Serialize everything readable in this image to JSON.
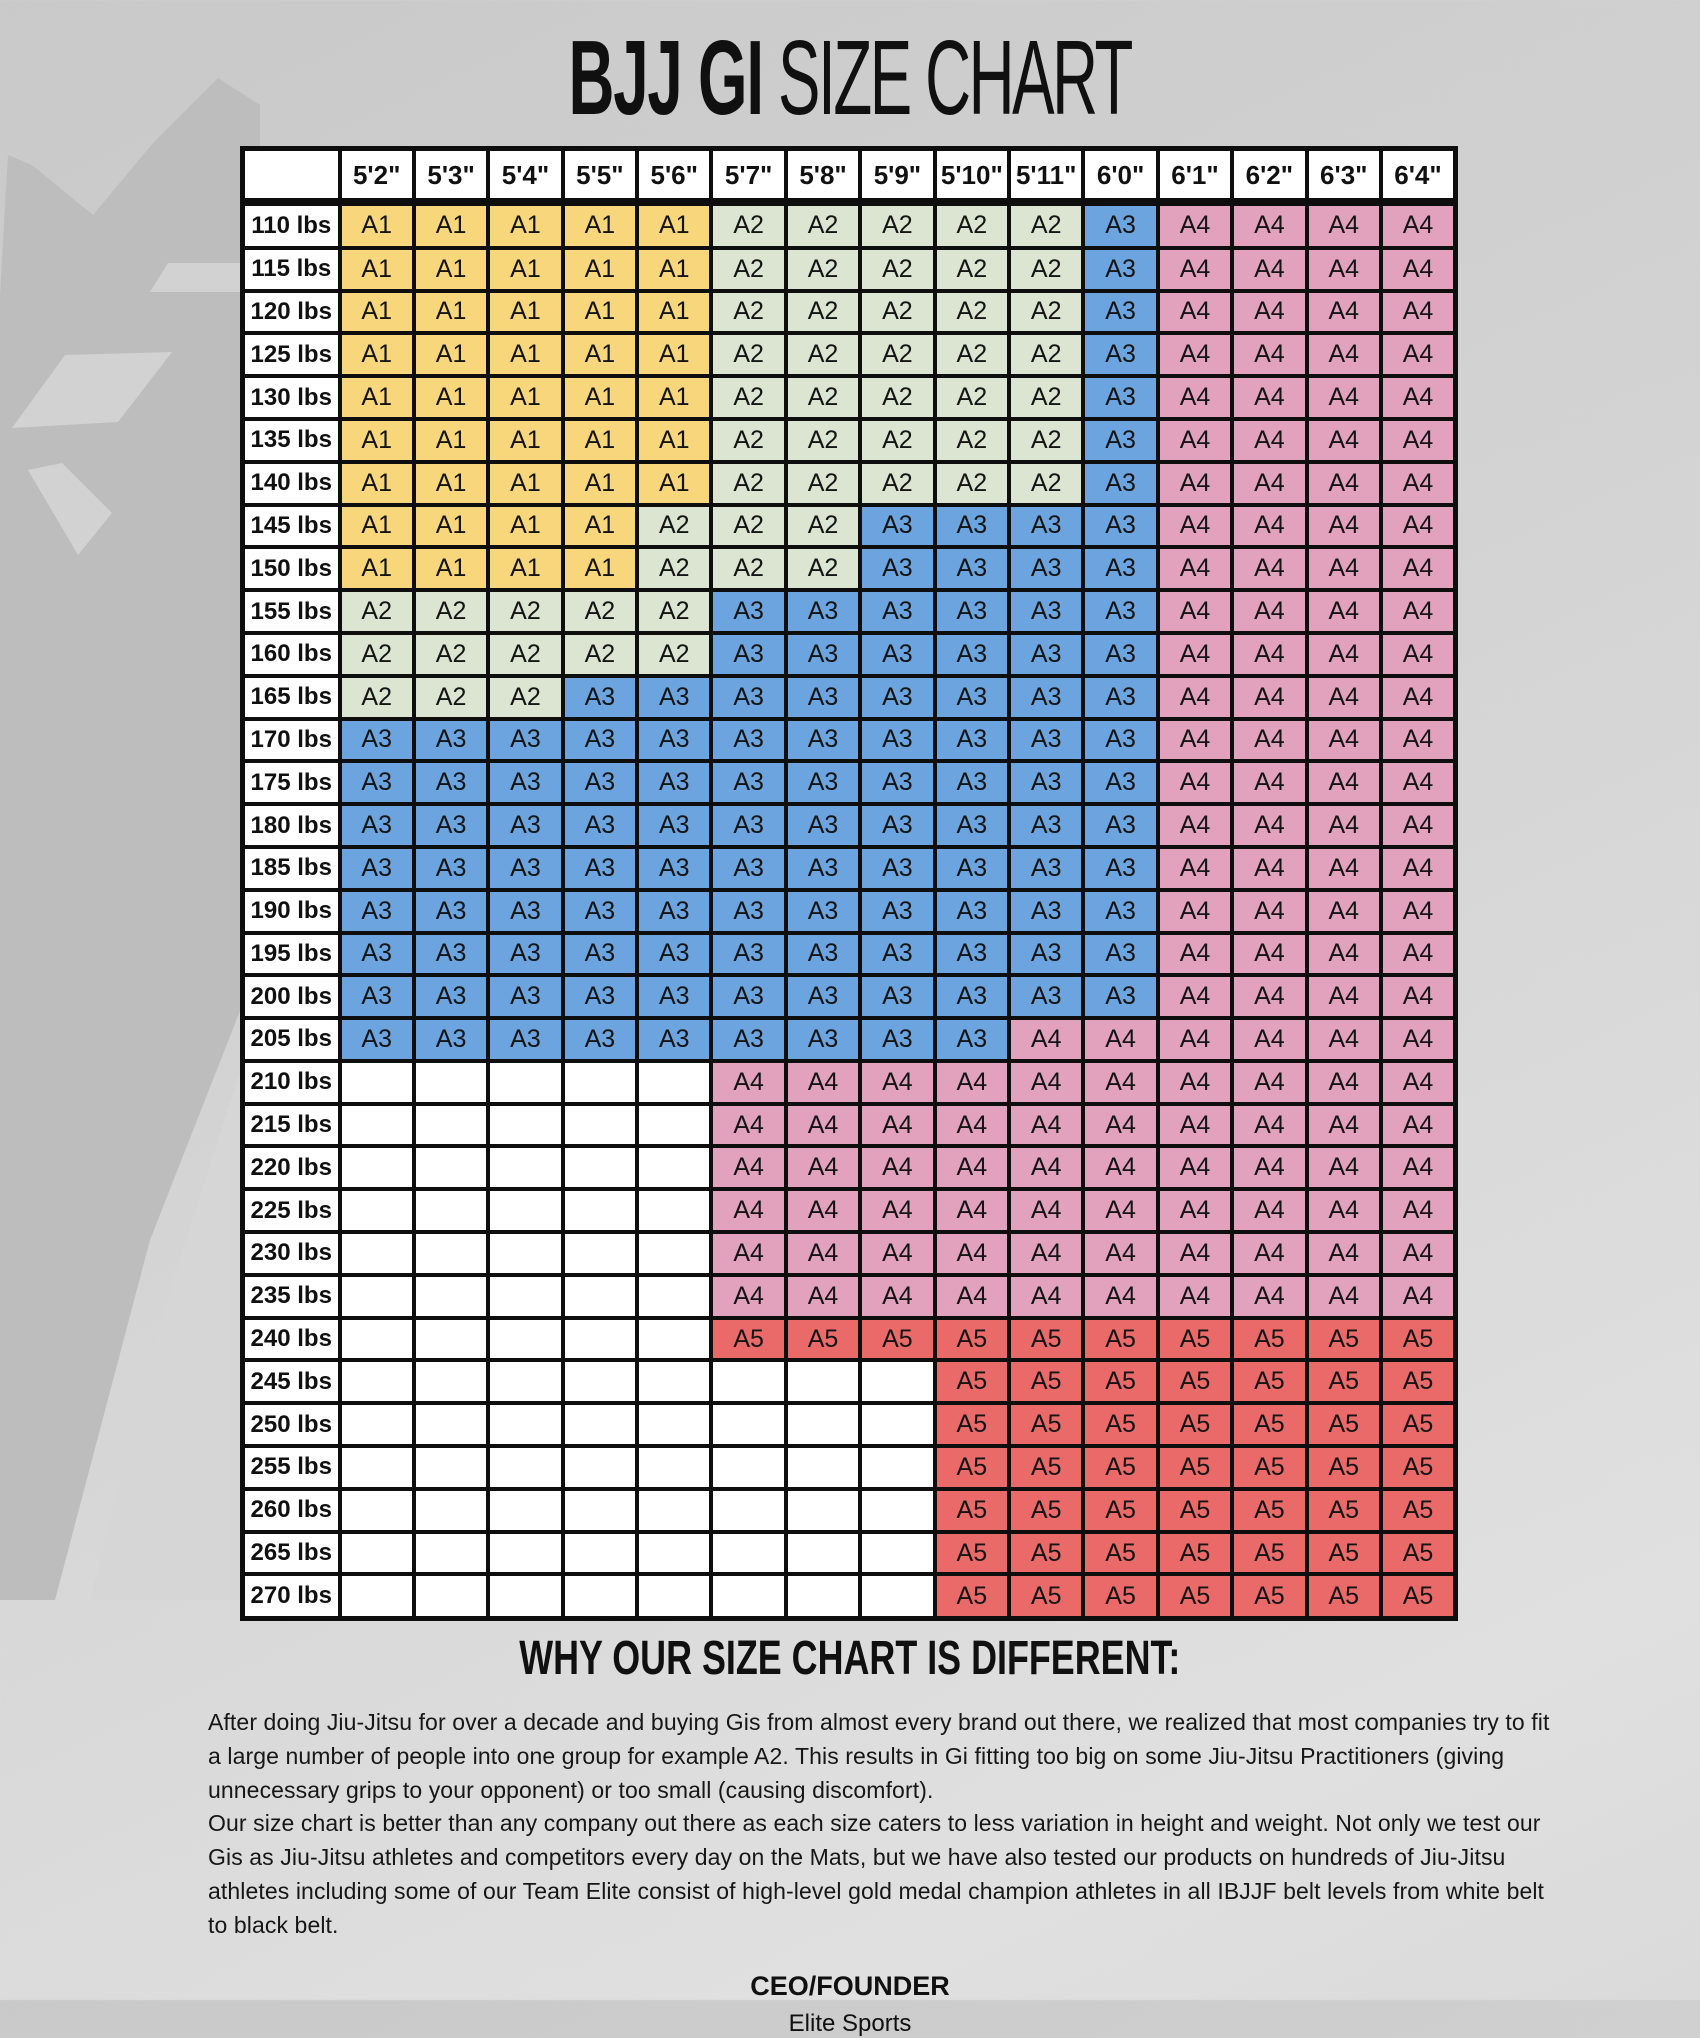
{
  "title": {
    "bold": "BJJ GI",
    "regular": " SIZE CHART"
  },
  "chart_data": {
    "type": "table",
    "title": "BJJ GI SIZE CHART",
    "corner_label": "",
    "columns": [
      "5'2\"",
      "5'3\"",
      "5'4\"",
      "5'5\"",
      "5'6\"",
      "5'7\"",
      "5'8\"",
      "5'9\"",
      "5'10\"",
      "5'11\"",
      "6'0\"",
      "6'1\"",
      "6'2\"",
      "6'3\"",
      "6'4\""
    ],
    "rows": [
      {
        "weight": "110 lbs",
        "sizes": [
          "A1",
          "A1",
          "A1",
          "A1",
          "A1",
          "A2",
          "A2",
          "A2",
          "A2",
          "A2",
          "A3",
          "A4",
          "A4",
          "A4",
          "A4"
        ]
      },
      {
        "weight": "115 lbs",
        "sizes": [
          "A1",
          "A1",
          "A1",
          "A1",
          "A1",
          "A2",
          "A2",
          "A2",
          "A2",
          "A2",
          "A3",
          "A4",
          "A4",
          "A4",
          "A4"
        ]
      },
      {
        "weight": "120 lbs",
        "sizes": [
          "A1",
          "A1",
          "A1",
          "A1",
          "A1",
          "A2",
          "A2",
          "A2",
          "A2",
          "A2",
          "A3",
          "A4",
          "A4",
          "A4",
          "A4"
        ]
      },
      {
        "weight": "125 lbs",
        "sizes": [
          "A1",
          "A1",
          "A1",
          "A1",
          "A1",
          "A2",
          "A2",
          "A2",
          "A2",
          "A2",
          "A3",
          "A4",
          "A4",
          "A4",
          "A4"
        ]
      },
      {
        "weight": "130 lbs",
        "sizes": [
          "A1",
          "A1",
          "A1",
          "A1",
          "A1",
          "A2",
          "A2",
          "A2",
          "A2",
          "A2",
          "A3",
          "A4",
          "A4",
          "A4",
          "A4"
        ]
      },
      {
        "weight": "135 lbs",
        "sizes": [
          "A1",
          "A1",
          "A1",
          "A1",
          "A1",
          "A2",
          "A2",
          "A2",
          "A2",
          "A2",
          "A3",
          "A4",
          "A4",
          "A4",
          "A4"
        ]
      },
      {
        "weight": "140 lbs",
        "sizes": [
          "A1",
          "A1",
          "A1",
          "A1",
          "A1",
          "A2",
          "A2",
          "A2",
          "A2",
          "A2",
          "A3",
          "A4",
          "A4",
          "A4",
          "A4"
        ]
      },
      {
        "weight": "145 lbs",
        "sizes": [
          "A1",
          "A1",
          "A1",
          "A1",
          "A2",
          "A2",
          "A2",
          "A3",
          "A3",
          "A3",
          "A3",
          "A4",
          "A4",
          "A4",
          "A4"
        ]
      },
      {
        "weight": "150 lbs",
        "sizes": [
          "A1",
          "A1",
          "A1",
          "A1",
          "A2",
          "A2",
          "A2",
          "A3",
          "A3",
          "A3",
          "A3",
          "A4",
          "A4",
          "A4",
          "A4"
        ]
      },
      {
        "weight": "155 lbs",
        "sizes": [
          "A2",
          "A2",
          "A2",
          "A2",
          "A2",
          "A3",
          "A3",
          "A3",
          "A3",
          "A3",
          "A3",
          "A4",
          "A4",
          "A4",
          "A4"
        ]
      },
      {
        "weight": "160 lbs",
        "sizes": [
          "A2",
          "A2",
          "A2",
          "A2",
          "A2",
          "A3",
          "A3",
          "A3",
          "A3",
          "A3",
          "A3",
          "A4",
          "A4",
          "A4",
          "A4"
        ]
      },
      {
        "weight": "165 lbs",
        "sizes": [
          "A2",
          "A2",
          "A2",
          "A3",
          "A3",
          "A3",
          "A3",
          "A3",
          "A3",
          "A3",
          "A3",
          "A4",
          "A4",
          "A4",
          "A4"
        ]
      },
      {
        "weight": "170 lbs",
        "sizes": [
          "A3",
          "A3",
          "A3",
          "A3",
          "A3",
          "A3",
          "A3",
          "A3",
          "A3",
          "A3",
          "A3",
          "A4",
          "A4",
          "A4",
          "A4"
        ]
      },
      {
        "weight": "175 lbs",
        "sizes": [
          "A3",
          "A3",
          "A3",
          "A3",
          "A3",
          "A3",
          "A3",
          "A3",
          "A3",
          "A3",
          "A3",
          "A4",
          "A4",
          "A4",
          "A4"
        ]
      },
      {
        "weight": "180 lbs",
        "sizes": [
          "A3",
          "A3",
          "A3",
          "A3",
          "A3",
          "A3",
          "A3",
          "A3",
          "A3",
          "A3",
          "A3",
          "A4",
          "A4",
          "A4",
          "A4"
        ]
      },
      {
        "weight": "185 lbs",
        "sizes": [
          "A3",
          "A3",
          "A3",
          "A3",
          "A3",
          "A3",
          "A3",
          "A3",
          "A3",
          "A3",
          "A3",
          "A4",
          "A4",
          "A4",
          "A4"
        ]
      },
      {
        "weight": "190 lbs",
        "sizes": [
          "A3",
          "A3",
          "A3",
          "A3",
          "A3",
          "A3",
          "A3",
          "A3",
          "A3",
          "A3",
          "A3",
          "A4",
          "A4",
          "A4",
          "A4"
        ]
      },
      {
        "weight": "195 lbs",
        "sizes": [
          "A3",
          "A3",
          "A3",
          "A3",
          "A3",
          "A3",
          "A3",
          "A3",
          "A3",
          "A3",
          "A3",
          "A4",
          "A4",
          "A4",
          "A4"
        ]
      },
      {
        "weight": "200 lbs",
        "sizes": [
          "A3",
          "A3",
          "A3",
          "A3",
          "A3",
          "A3",
          "A3",
          "A3",
          "A3",
          "A3",
          "A3",
          "A4",
          "A4",
          "A4",
          "A4"
        ]
      },
      {
        "weight": "205 lbs",
        "sizes": [
          "A3",
          "A3",
          "A3",
          "A3",
          "A3",
          "A3",
          "A3",
          "A3",
          "A3",
          "A4",
          "A4",
          "A4",
          "A4",
          "A4",
          "A4"
        ]
      },
      {
        "weight": "210 lbs",
        "sizes": [
          "",
          "",
          "",
          "",
          "",
          "A4",
          "A4",
          "A4",
          "A4",
          "A4",
          "A4",
          "A4",
          "A4",
          "A4",
          "A4"
        ]
      },
      {
        "weight": "215 lbs",
        "sizes": [
          "",
          "",
          "",
          "",
          "",
          "A4",
          "A4",
          "A4",
          "A4",
          "A4",
          "A4",
          "A4",
          "A4",
          "A4",
          "A4"
        ]
      },
      {
        "weight": "220 lbs",
        "sizes": [
          "",
          "",
          "",
          "",
          "",
          "A4",
          "A4",
          "A4",
          "A4",
          "A4",
          "A4",
          "A4",
          "A4",
          "A4",
          "A4"
        ]
      },
      {
        "weight": "225 lbs",
        "sizes": [
          "",
          "",
          "",
          "",
          "",
          "A4",
          "A4",
          "A4",
          "A4",
          "A4",
          "A4",
          "A4",
          "A4",
          "A4",
          "A4"
        ]
      },
      {
        "weight": "230 lbs",
        "sizes": [
          "",
          "",
          "",
          "",
          "",
          "A4",
          "A4",
          "A4",
          "A4",
          "A4",
          "A4",
          "A4",
          "A4",
          "A4",
          "A4"
        ]
      },
      {
        "weight": "235 lbs",
        "sizes": [
          "",
          "",
          "",
          "",
          "",
          "A4",
          "A4",
          "A4",
          "A4",
          "A4",
          "A4",
          "A4",
          "A4",
          "A4",
          "A4"
        ]
      },
      {
        "weight": "240 lbs",
        "sizes": [
          "",
          "",
          "",
          "",
          "",
          "A5",
          "A5",
          "A5",
          "A5",
          "A5",
          "A5",
          "A5",
          "A5",
          "A5",
          "A5"
        ]
      },
      {
        "weight": "245 lbs",
        "sizes": [
          "",
          "",
          "",
          "",
          "",
          "",
          "",
          "",
          "A5",
          "A5",
          "A5",
          "A5",
          "A5",
          "A5",
          "A5"
        ]
      },
      {
        "weight": "250 lbs",
        "sizes": [
          "",
          "",
          "",
          "",
          "",
          "",
          "",
          "",
          "A5",
          "A5",
          "A5",
          "A5",
          "A5",
          "A5",
          "A5"
        ]
      },
      {
        "weight": "255 lbs",
        "sizes": [
          "",
          "",
          "",
          "",
          "",
          "",
          "",
          "",
          "A5",
          "A5",
          "A5",
          "A5",
          "A5",
          "A5",
          "A5"
        ]
      },
      {
        "weight": "260 lbs",
        "sizes": [
          "",
          "",
          "",
          "",
          "",
          "",
          "",
          "",
          "A5",
          "A5",
          "A5",
          "A5",
          "A5",
          "A5",
          "A5"
        ]
      },
      {
        "weight": "265 lbs",
        "sizes": [
          "",
          "",
          "",
          "",
          "",
          "",
          "",
          "",
          "A5",
          "A5",
          "A5",
          "A5",
          "A5",
          "A5",
          "A5"
        ]
      },
      {
        "weight": "270 lbs",
        "sizes": [
          "",
          "",
          "",
          "",
          "",
          "",
          "",
          "",
          "A5",
          "A5",
          "A5",
          "A5",
          "A5",
          "A5",
          "A5"
        ]
      }
    ],
    "size_colors": {
      "A1": "#F8D77C",
      "A2": "#DBE5D1",
      "A3": "#6BA4DE",
      "A4": "#E2A2BE",
      "A5": "#E96A68",
      "empty": "#FFFFFF"
    },
    "layout": {
      "grid": true,
      "border_color": "#0e0e0e",
      "header_background": "#FFFFFF"
    }
  },
  "footer": {
    "heading": "WHY OUR SIZE CHART IS DIFFERENT:",
    "paragraphs": [
      "After doing Jiu-Jitsu for over a decade and buying Gis from almost every brand out there, we realized that most companies try to fit a large number of people into one group for example A2. This results in Gi fitting too big on some Jiu-Jitsu Practitioners (giving unnecessary grips to your opponent) or too small (causing discomfort).",
      "Our size chart is better than any company out there as each size caters to less variation in height and weight. Not only we test our Gis as Jiu-Jitsu athletes and competitors every day on the Mats, but we have also tested our products on hundreds of Jiu-Jitsu athletes including some of our Team Elite consist of high-level gold medal champion athletes in all IBJJF belt levels from white belt to black belt."
    ],
    "ceo_label": "CEO/FOUNDER",
    "company": "Elite Sports"
  }
}
